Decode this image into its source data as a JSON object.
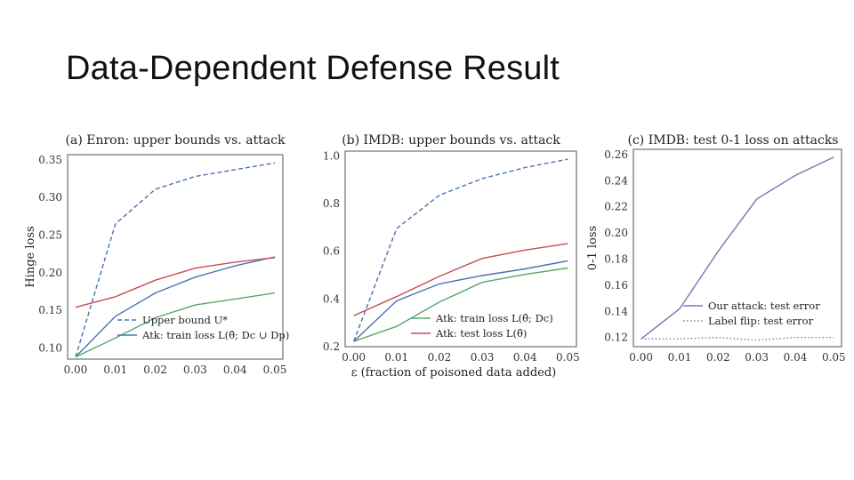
{
  "slide": {
    "title": "Data-Dependent Defense Result"
  },
  "chart_data": [
    {
      "type": "line",
      "title": "(a) Enron: upper bounds vs. attack",
      "xlabel": "",
      "ylabel": "Hinge loss",
      "x": [
        0.0,
        0.01,
        0.02,
        0.03,
        0.04,
        0.05
      ],
      "xticks": [
        "0.00",
        "0.01",
        "0.02",
        "0.03",
        "0.04",
        "0.05"
      ],
      "yticks": [
        "0.10",
        "0.15",
        "0.20",
        "0.25",
        "0.30",
        "0.35"
      ],
      "xlim": [
        -0.002,
        0.052
      ],
      "ylim": [
        0.085,
        0.357
      ],
      "legend_position": "bottom-right",
      "series": [
        {
          "name": "Upper bound U*",
          "color": "#4c72b0",
          "dash": "dashed",
          "legend": true,
          "values": [
            0.088,
            0.265,
            0.311,
            0.328,
            0.337,
            0.346
          ]
        },
        {
          "name": "Atk: train loss L(θ̂; Dc ∪ Dp)",
          "color": "#4c72b0",
          "dash": "solid",
          "legend": true,
          "values": [
            0.088,
            0.142,
            0.173,
            0.194,
            0.209,
            0.221
          ]
        },
        {
          "name": "",
          "color": "#c44e52",
          "dash": "solid",
          "legend": false,
          "values": [
            0.154,
            0.168,
            0.19,
            0.206,
            0.214,
            0.22
          ]
        },
        {
          "name": "",
          "color": "#55a868",
          "dash": "solid",
          "legend": false,
          "values": [
            0.088,
            0.113,
            0.14,
            0.157,
            0.165,
            0.173
          ]
        }
      ]
    },
    {
      "type": "line",
      "title": "(b) IMDB: upper bounds vs. attack",
      "xlabel": "ε (fraction of poisoned data added)",
      "ylabel": "",
      "x": [
        0.0,
        0.01,
        0.02,
        0.03,
        0.04,
        0.05
      ],
      "xticks": [
        "0.00",
        "0.01",
        "0.02",
        "0.03",
        "0.04",
        "0.05"
      ],
      "yticks": [
        "0.2",
        "0.4",
        "0.6",
        "0.8",
        "1.0"
      ],
      "xlim": [
        -0.002,
        0.052
      ],
      "ylim": [
        0.2,
        1.02
      ],
      "legend_position": "bottom-right",
      "series": [
        {
          "name": "",
          "color": "#4c72b0",
          "dash": "dashed",
          "legend": false,
          "values": [
            0.222,
            0.695,
            0.835,
            0.905,
            0.951,
            0.986
          ]
        },
        {
          "name": "",
          "color": "#4c72b0",
          "dash": "solid",
          "legend": false,
          "values": [
            0.222,
            0.392,
            0.463,
            0.498,
            0.526,
            0.56
          ]
        },
        {
          "name": "Atk: train loss L(θ̂; Dc)",
          "color": "#55a868",
          "dash": "solid",
          "legend": true,
          "values": [
            0.222,
            0.285,
            0.387,
            0.47,
            0.503,
            0.53
          ]
        },
        {
          "name": "Atk: test loss L(θ̂)",
          "color": "#c44e52",
          "dash": "solid",
          "legend": true,
          "values": [
            0.33,
            0.41,
            0.495,
            0.57,
            0.605,
            0.632
          ]
        }
      ]
    },
    {
      "type": "line",
      "title": "(c) IMDB: test 0-1 loss on attacks",
      "xlabel": "",
      "ylabel": "0-1 loss",
      "x": [
        0.0,
        0.01,
        0.02,
        0.03,
        0.04,
        0.05
      ],
      "xticks": [
        "0.00",
        "0.01",
        "0.02",
        "0.03",
        "0.04",
        "0.05"
      ],
      "yticks": [
        "0.12",
        "0.14",
        "0.16",
        "0.18",
        "0.20",
        "0.22",
        "0.24",
        "0.26"
      ],
      "xlim": [
        -0.002,
        0.052
      ],
      "ylim": [
        0.113,
        0.264
      ],
      "legend_position": "bottom-right",
      "series": [
        {
          "name": "Our attack: test error",
          "color": "#8172b2",
          "dash": "solid",
          "legend": true,
          "values": [
            0.119,
            0.142,
            0.186,
            0.226,
            0.244,
            0.258
          ]
        },
        {
          "name": "Label flip: test error",
          "color": "#8172b2",
          "dash": "dotted",
          "legend": true,
          "values": [
            0.119,
            0.119,
            0.12,
            0.118,
            0.12,
            0.12
          ]
        }
      ]
    }
  ]
}
